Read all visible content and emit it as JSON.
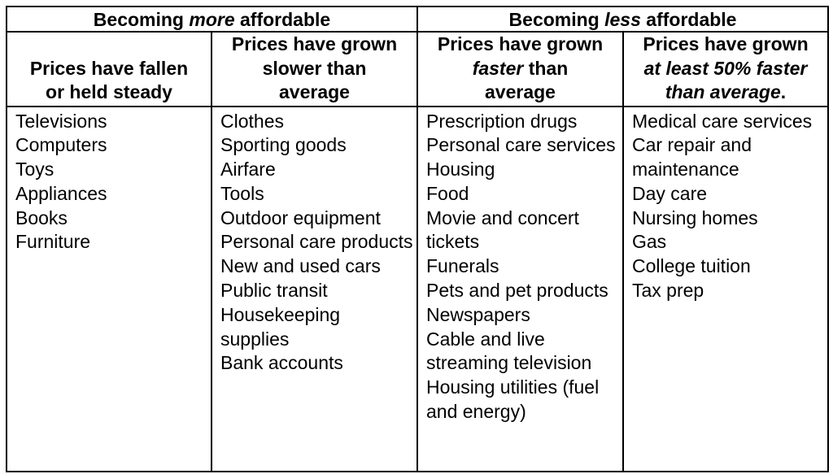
{
  "groups": {
    "more": {
      "prefix": "Becoming ",
      "emphasis": "more",
      "suffix": " affordable"
    },
    "less": {
      "prefix": "Becoming ",
      "emphasis": "less",
      "suffix": " affordable"
    }
  },
  "columns": [
    {
      "header": {
        "line1": "Prices have fallen",
        "line2": "or held steady"
      },
      "items": [
        "Televisions",
        "Computers",
        "Toys",
        "Appliances",
        "Books",
        "Furniture"
      ]
    },
    {
      "header": {
        "line1": "Prices have grown",
        "line2": "slower than",
        "line3": "average"
      },
      "items": [
        "Clothes",
        "Sporting goods",
        "Airfare",
        "Tools",
        "Outdoor equipment",
        "Personal care products",
        "New and used cars",
        "Public transit",
        "Housekeeping supplies",
        "Bank accounts"
      ]
    },
    {
      "header": {
        "line1": "Prices have grown",
        "emphasis": "faster",
        "line2_suffix": " than",
        "line3": "average"
      },
      "items": [
        "Prescription drugs",
        "Personal care services",
        "Housing",
        "Food",
        "Movie and concert tickets",
        "Funerals",
        "Pets and pet products",
        "Newspapers",
        "Cable and live streaming television",
        "Housing utilities (fuel and energy)"
      ]
    },
    {
      "header": {
        "line1": "Prices have grown",
        "emphasis_line2": "at least 50% faster",
        "emphasis_line3": "than average",
        "line3_suffix": "."
      },
      "items": [
        "Medical care services",
        "Car repair and maintenance",
        "Day care",
        "Nursing homes",
        "Gas",
        "College tuition",
        "Tax prep"
      ]
    }
  ]
}
